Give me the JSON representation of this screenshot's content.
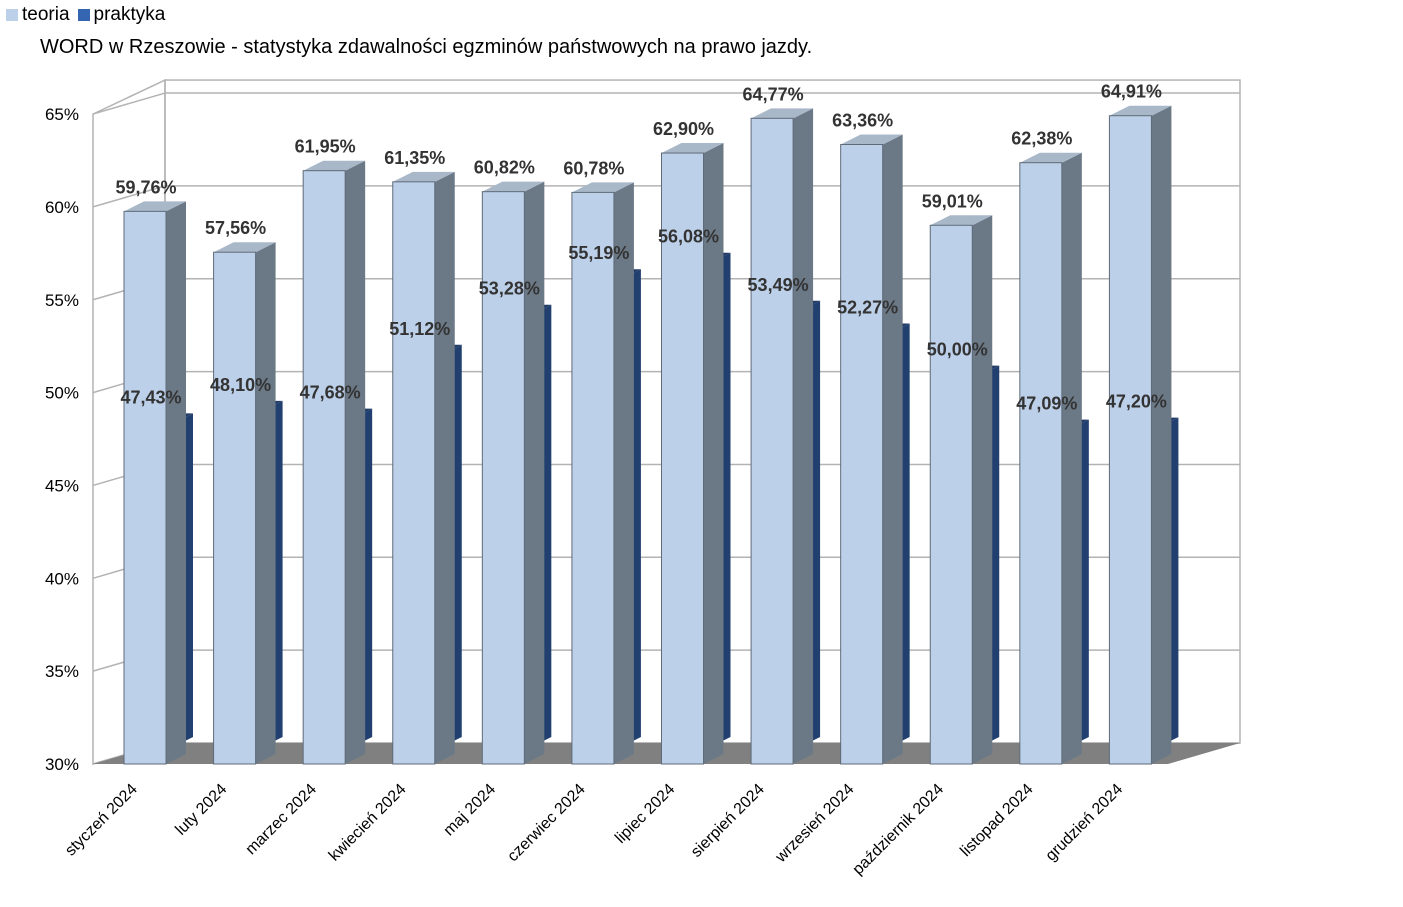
{
  "chart_data": {
    "type": "bar",
    "title": "WORD w Rzeszowie - statystyka zdawalności egzminów państwowych na prawo jazdy.",
    "categories": [
      "styczeń 2024",
      "luty 2024",
      "marzec 2024",
      "kwiecień 2024",
      "maj 2024",
      "czerwiec 2024",
      "lipiec 2024",
      "sierpień 2024",
      "wrzesień 2024",
      "październik 2024",
      "listopad 2024",
      "grudzień 2024"
    ],
    "series": [
      {
        "name": "teoria",
        "values": [
          59.76,
          57.56,
          61.95,
          61.35,
          60.82,
          60.78,
          62.9,
          64.77,
          63.36,
          59.01,
          62.38,
          64.91
        ],
        "labels": [
          "59,76%",
          "57,56%",
          "61,95%",
          "61,35%",
          "60,82%",
          "60,78%",
          "62,90%",
          "64,77%",
          "63,36%",
          "59,01%",
          "62,38%",
          "64,91%"
        ],
        "color": "#bdd0e9"
      },
      {
        "name": "praktyka",
        "values": [
          47.43,
          48.1,
          47.68,
          51.12,
          53.28,
          55.19,
          56.08,
          53.49,
          52.27,
          50.0,
          47.09,
          47.2
        ],
        "labels": [
          "47,43%",
          "48,10%",
          "47,68%",
          "51,12%",
          "53,28%",
          "55,19%",
          "56,08%",
          "53,49%",
          "52,27%",
          "50,00%",
          "47,09%",
          "47,20%"
        ],
        "color": "#3465b0"
      }
    ],
    "yticks": [
      "30%",
      "35%",
      "40%",
      "45%",
      "50%",
      "55%",
      "60%",
      "65%"
    ],
    "ylim": [
      30,
      65
    ],
    "grid": true,
    "legend": "top-left",
    "three_d": true
  }
}
